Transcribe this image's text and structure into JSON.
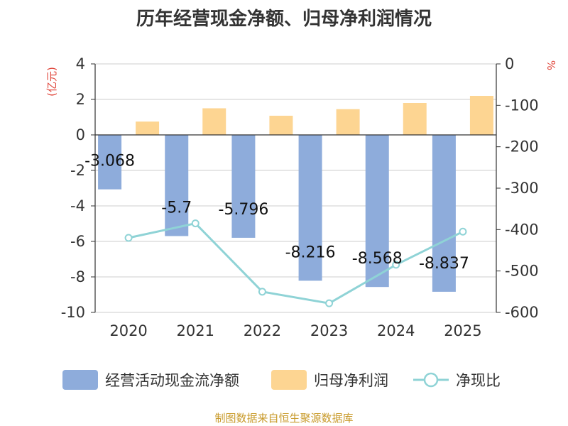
{
  "chart_data": {
    "type": "bar",
    "title": "历年经营现金净额、归母净利润情况",
    "categories": [
      "2020",
      "2021",
      "2022",
      "2023",
      "2024",
      "2025"
    ],
    "series": [
      {
        "name": "经营活动现金流净额",
        "type": "bar",
        "axis": "left",
        "color": "#8eacdb",
        "values": [
          -3.068,
          -5.7,
          -5.796,
          -8.216,
          -8.568,
          -8.837
        ],
        "labels": [
          "-3.068",
          "-5.7",
          "-5.796",
          "-8.216",
          "-8.568",
          "-8.837"
        ]
      },
      {
        "name": "归母净利润",
        "type": "bar",
        "axis": "left",
        "color": "#fdd592",
        "values": [
          0.75,
          1.5,
          1.08,
          1.45,
          1.8,
          2.2
        ]
      },
      {
        "name": "净现比",
        "type": "line",
        "axis": "right",
        "color": "#8fd3d6",
        "values": [
          -420,
          -385,
          -550,
          -578,
          -485,
          -405
        ]
      }
    ],
    "y_left": {
      "label": "(亿元)",
      "min": -10,
      "max": 4,
      "ticks": [
        4,
        2,
        0,
        -2,
        -4,
        -6,
        -8,
        -10
      ]
    },
    "y_right": {
      "label": "%",
      "min": -600,
      "max": 0,
      "ticks": [
        0,
        -100,
        -200,
        -300,
        -400,
        -500,
        -600
      ]
    },
    "grid": true,
    "legend_position": "bottom"
  },
  "source": "制图数据来自恒生聚源数据库"
}
